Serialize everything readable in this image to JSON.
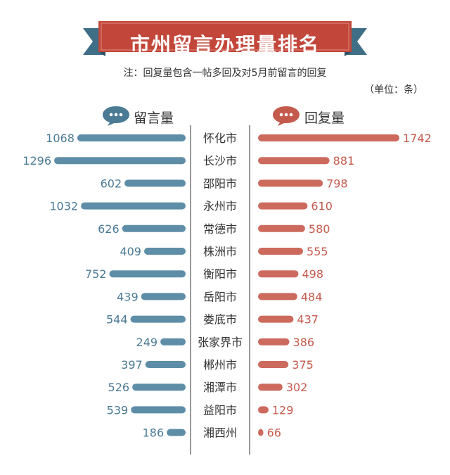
{
  "header": {
    "title": "市州留言办理量排名",
    "note": "注：回复量包含一帖多回及对5月前留言的回复",
    "unit": "（单位：条）"
  },
  "legend": {
    "left_label": "留言量",
    "right_label": "回复量"
  },
  "colors": {
    "banner": "#c2473a",
    "banner_dark": "#8f2a22",
    "ribbon": "#3f6f86",
    "left_bar": "#5e8ea7",
    "left_text": "#4a7a94",
    "right_bar": "#cd6a5e",
    "right_text": "#c45a4c",
    "divider": "#555555"
  },
  "chart_data": {
    "type": "bar",
    "categories": [
      "怀化市",
      "长沙市",
      "邵阳市",
      "永州市",
      "常德市",
      "株洲市",
      "衡阳市",
      "岳阳市",
      "娄底市",
      "张家界市",
      "郴州市",
      "湘潭市",
      "益阳市",
      "湘西州"
    ],
    "series": [
      {
        "name": "留言量",
        "values": [
          1068,
          1296,
          602,
          1032,
          626,
          409,
          752,
          439,
          544,
          249,
          397,
          526,
          539,
          186
        ]
      },
      {
        "name": "回复量",
        "values": [
          1742,
          881,
          798,
          610,
          580,
          555,
          498,
          484,
          437,
          386,
          375,
          302,
          129,
          66
        ]
      }
    ]
  }
}
